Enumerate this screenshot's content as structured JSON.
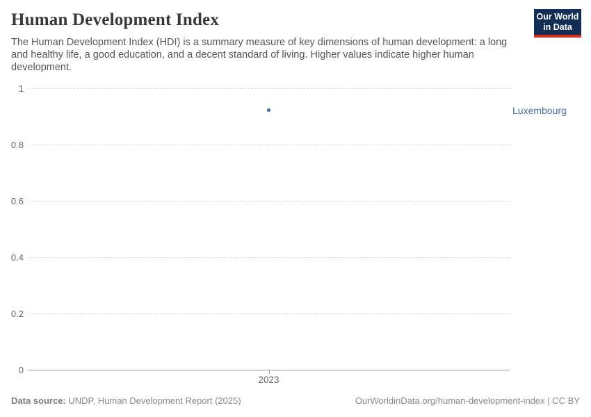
{
  "header": {
    "title": "Human Development Index",
    "subtitle": "The Human Development Index (HDI) is a summary measure of key dimensions of human development: a long and healthy life, a good education, and a decent standard of living. Higher values indicate higher human development.",
    "logo": {
      "line1": "Our World",
      "line2": "in Data"
    }
  },
  "chart_data": {
    "type": "scatter",
    "title": "Human Development Index",
    "series": [
      {
        "name": "Luxembourg",
        "color": "#4c6a9c",
        "points": [
          {
            "x": 2023,
            "y": 0.922
          }
        ]
      }
    ],
    "categories": [
      2023
    ],
    "xticks": [
      "2023"
    ],
    "yticks": [
      0,
      0.2,
      0.4,
      0.6,
      0.8,
      1
    ],
    "ylim": [
      0,
      1
    ],
    "xlabel": "",
    "ylabel": "",
    "grid": "horizontal-dashed",
    "legend_position": "right-of-point",
    "entity_label": "Luxembourg"
  },
  "colors": {
    "series_blue": "#4c6a9c",
    "gridline": "#dcdcdc",
    "axis": "#999999",
    "tick_text": "#666666",
    "logo_navy": "#132e54",
    "logo_red": "#d42b21"
  },
  "footer": {
    "source_label": "Data source:",
    "source_text": " UNDP, Human Development Report (2025)",
    "link_text": "OurWorldinData.org/human-development-index | CC BY"
  }
}
